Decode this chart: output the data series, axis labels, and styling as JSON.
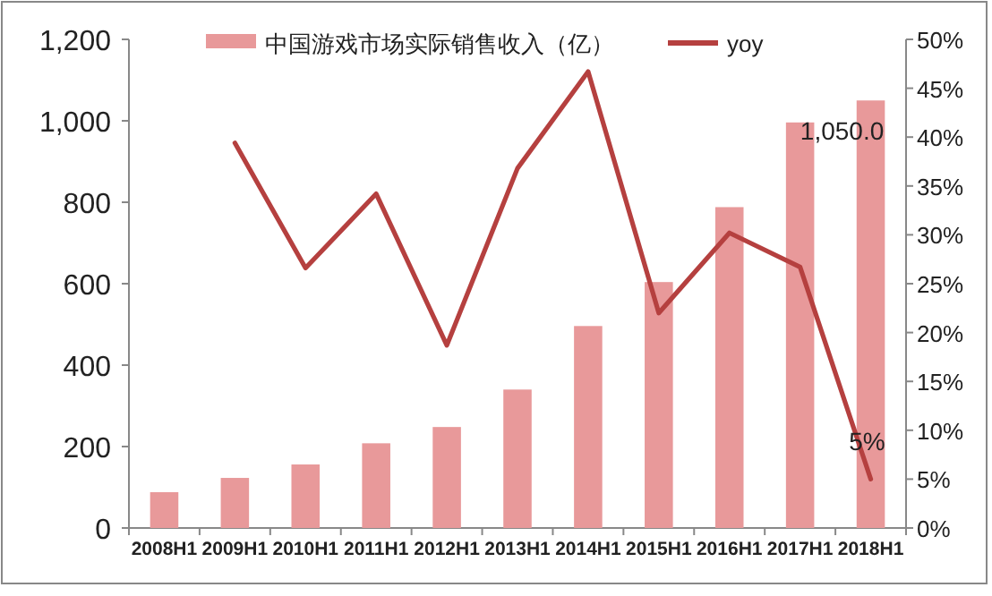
{
  "chart_data": {
    "type": "bar",
    "categories": [
      "2008H1",
      "2009H1",
      "2010H1",
      "2011H1",
      "2012H1",
      "2013H1",
      "2014H1",
      "2015H1",
      "2016H1",
      "2017H1",
      "2018H1"
    ],
    "series": [
      {
        "name": "中国游戏市场实际销售收入（亿）",
        "color": "#e8999a",
        "values": [
          88,
          123,
          156,
          208,
          248,
          340,
          496,
          604,
          788,
          996,
          1050.0
        ],
        "value_labels": [
          null,
          null,
          null,
          null,
          null,
          null,
          null,
          null,
          null,
          null,
          "1,050.0"
        ]
      },
      {
        "name": "yoy",
        "type": "line",
        "axis": "y2",
        "color": "#b5403f",
        "values": [
          null,
          39.4,
          26.6,
          34.2,
          18.7,
          36.8,
          46.7,
          22,
          30.2,
          26.7,
          5
        ],
        "value_labels": [
          null,
          null,
          null,
          null,
          null,
          null,
          null,
          null,
          null,
          null,
          "5%"
        ]
      }
    ],
    "ylim": [
      0,
      1200
    ],
    "yticks": [
      0,
      200,
      400,
      600,
      800,
      {
        "value": 1000,
        "label": "1,000"
      },
      {
        "value": 1200,
        "label": "1,200"
      }
    ],
    "y2lim": [
      0,
      50
    ],
    "y2ticks": [
      {
        "value": 0,
        "label": "0%"
      },
      {
        "value": 5,
        "label": "5%"
      },
      {
        "value": 10,
        "label": "10%"
      },
      {
        "value": 15,
        "label": "15%"
      },
      {
        "value": 20,
        "label": "20%"
      },
      {
        "value": 25,
        "label": "25%"
      },
      {
        "value": 30,
        "label": "30%"
      },
      {
        "value": 35,
        "label": "35%"
      },
      {
        "value": 40,
        "label": "40%"
      },
      {
        "value": 45,
        "label": "45%"
      },
      {
        "value": 50,
        "label": "50%"
      }
    ],
    "legend": "top"
  }
}
